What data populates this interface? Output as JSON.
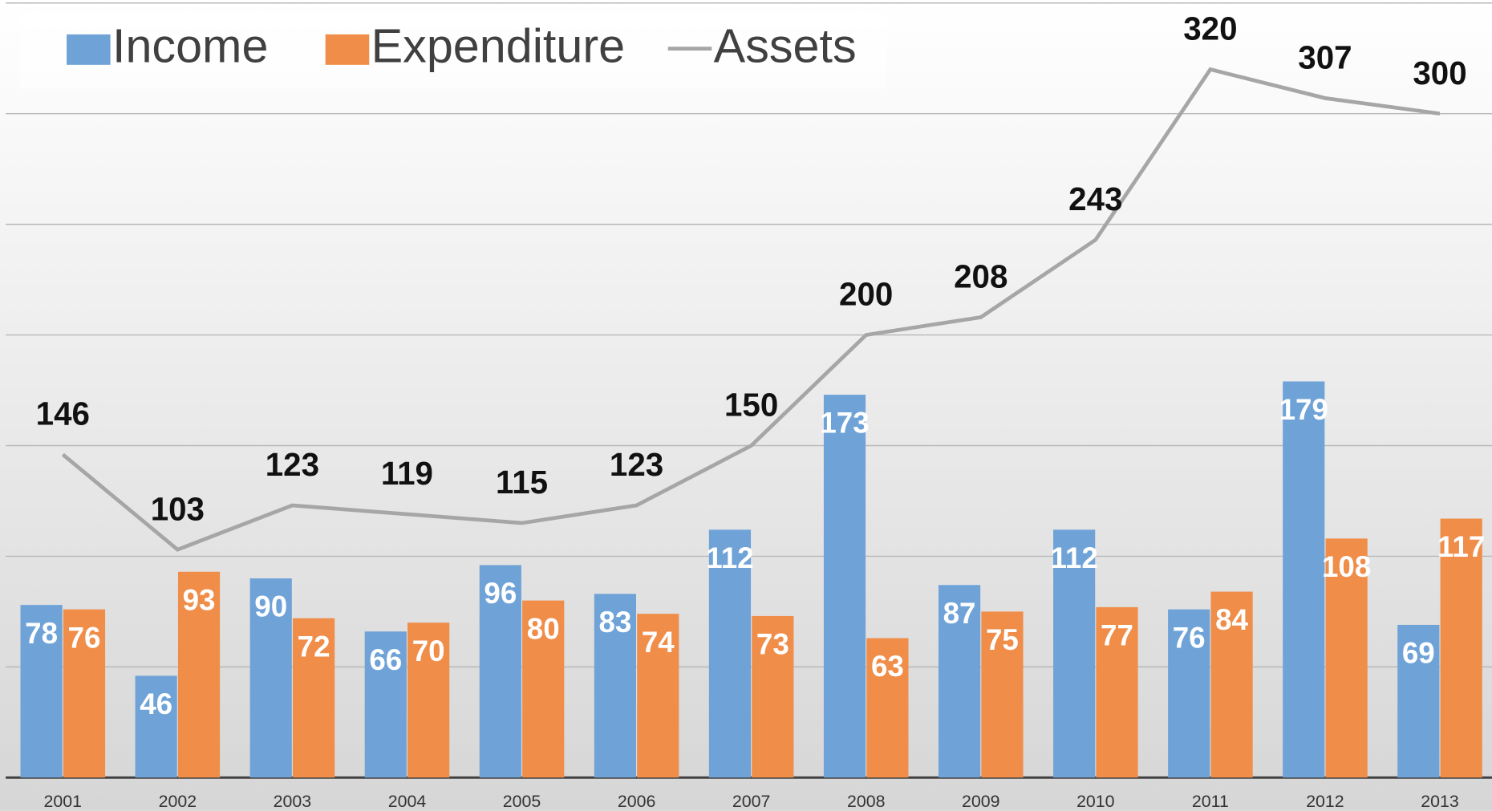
{
  "chart_data": {
    "type": "bar_line",
    "categories": [
      "2001",
      "2002",
      "2003",
      "2004",
      "2005",
      "2006",
      "2007",
      "2008",
      "2009",
      "2010",
      "2011",
      "2012",
      "2013"
    ],
    "series": [
      {
        "name": "Income",
        "type": "bar",
        "color": "#6fa3d8",
        "values": [
          78,
          46,
          90,
          66,
          96,
          83,
          112,
          173,
          87,
          112,
          76,
          179,
          69
        ]
      },
      {
        "name": "Expenditure",
        "type": "bar",
        "color": "#f08d49",
        "values": [
          76,
          93,
          72,
          70,
          80,
          74,
          73,
          63,
          75,
          77,
          84,
          108,
          117
        ]
      },
      {
        "name": "Assets",
        "type": "line",
        "color": "#a6a6a6",
        "values": [
          146,
          103,
          123,
          119,
          115,
          123,
          150,
          200,
          208,
          243,
          320,
          307,
          300
        ]
      }
    ],
    "ylim": [
      0,
      350
    ],
    "yticks": [
      0,
      50,
      100,
      150,
      200,
      250,
      300,
      350
    ],
    "grid": true,
    "legend": "top-left"
  }
}
